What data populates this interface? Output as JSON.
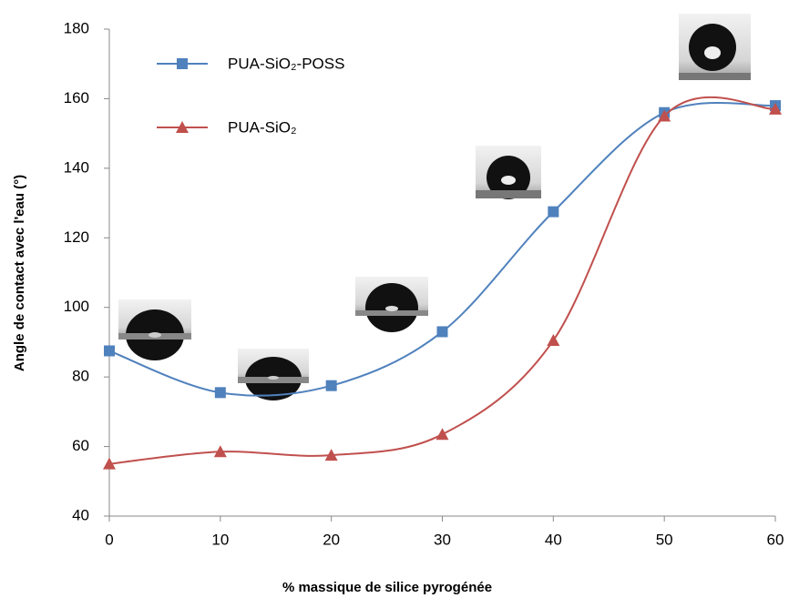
{
  "chart_data": {
    "type": "line",
    "x_label": "% massique de silice pyrogénée",
    "y_label": "Angle de contact avec l'eau (°)",
    "x": [
      0,
      10,
      20,
      30,
      40,
      50,
      60
    ],
    "series": [
      {
        "name": "PUA-SiO₂-POSS",
        "color": "#4f81bd",
        "marker": "square",
        "values": [
          87.5,
          75.5,
          77.5,
          93,
          127.5,
          156,
          158
        ]
      },
      {
        "name": "PUA-SiO₂",
        "color": "#c0504d",
        "marker": "triangle",
        "values": [
          55,
          58.5,
          57.5,
          63.5,
          90.5,
          155,
          157
        ]
      }
    ],
    "xlim": [
      0,
      60
    ],
    "xticks": [
      0,
      10,
      20,
      30,
      40,
      50,
      60
    ],
    "ylim": [
      40,
      180
    ],
    "yticks": [
      40,
      60,
      80,
      100,
      120,
      140,
      160,
      180
    ],
    "smooth": true,
    "grid": false
  }
}
